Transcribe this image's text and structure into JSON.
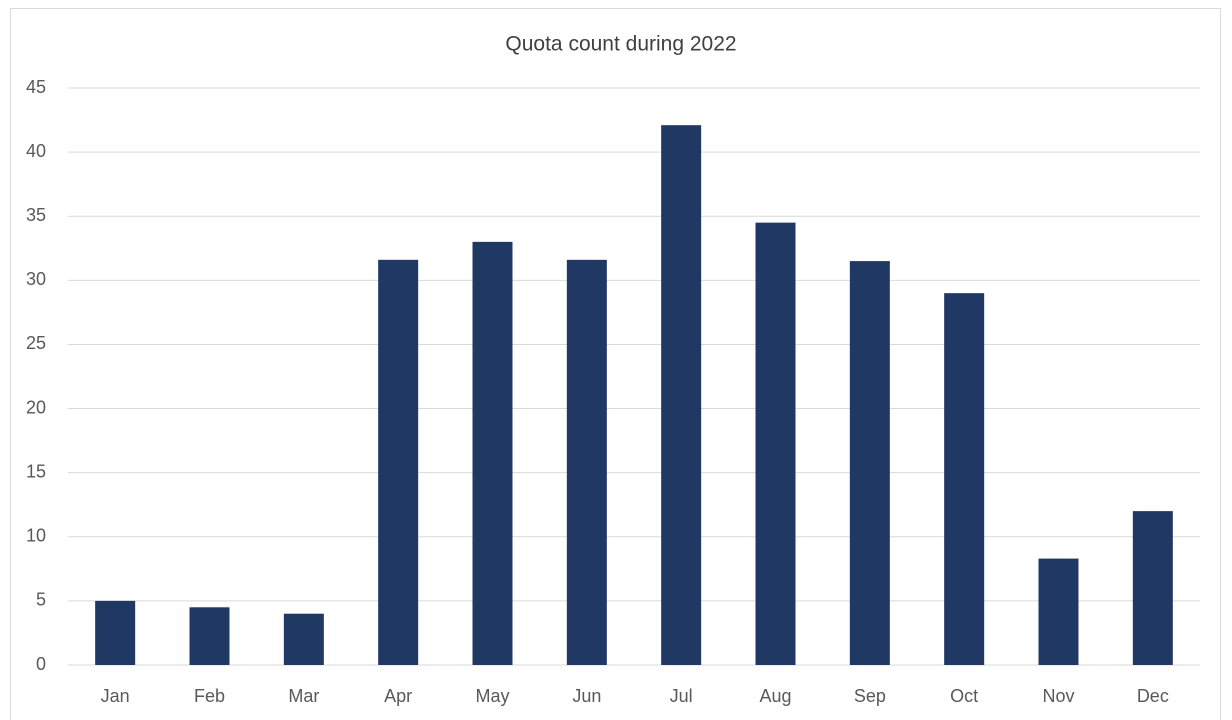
{
  "chart_data": {
    "type": "bar",
    "title": "Quota count during 2022",
    "categories": [
      "Jan",
      "Feb",
      "Mar",
      "Apr",
      "May",
      "Jun",
      "Jul",
      "Aug",
      "Sep",
      "Oct",
      "Nov",
      "Dec"
    ],
    "values": [
      5,
      4.5,
      4,
      31.6,
      33,
      31.6,
      42.1,
      34.5,
      31.5,
      29,
      8.3,
      12
    ],
    "color": "#203864",
    "ylim": [
      0,
      45
    ],
    "yticks": [
      0,
      5,
      10,
      15,
      20,
      25,
      30,
      35,
      40,
      45
    ],
    "grid": true
  }
}
